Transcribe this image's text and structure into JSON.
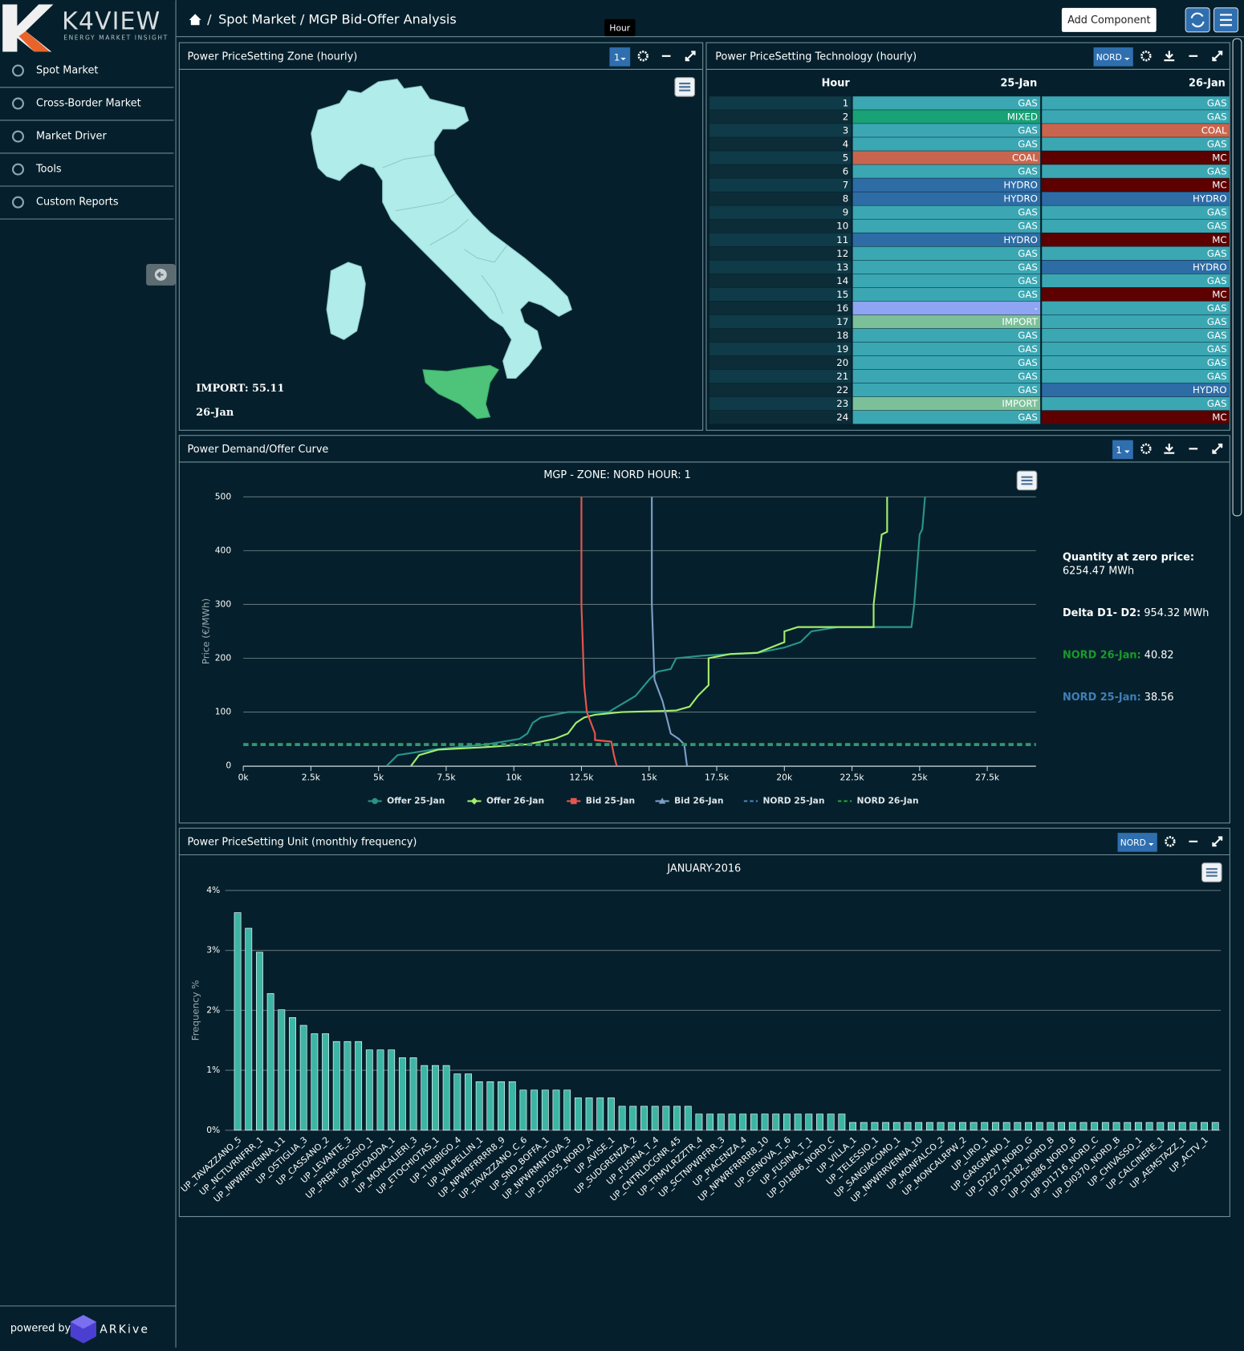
{
  "sidebar": {
    "logo": "K4VIEW",
    "tagline": "ENERGY MARKET INSIGHT",
    "menu": [
      "Spot Market",
      "Cross-Border Market",
      "Market Driver",
      "Tools",
      "Custom Reports"
    ],
    "powered_by": "powered by",
    "brand": "ARKive"
  },
  "header": {
    "breadcrumb": "Spot Market / MGP Bid-Offer Analysis",
    "button": "Add Component",
    "tooltip": "Hour"
  },
  "map_panel": {
    "title": "Power PriceSetting Zone (hourly)",
    "selector": "1",
    "label": "IMPORT: 55.11",
    "date": "26-Jan"
  },
  "table_panel": {
    "title": "Power PriceSetting Technology (hourly)",
    "selector": "NORD",
    "columns": [
      "Hour",
      "25-Jan",
      "26-Jan"
    ],
    "colors": {
      "GAS": "#3ba7b3",
      "MIXED": "#18a276",
      "COAL": "#c9654e",
      "MC": "#5c0000",
      "HYDRO": "#2e6ca6",
      "IMPORT": "#7cc09a",
      "-": "#8fa4f2"
    },
    "rows": [
      [
        1,
        "GAS",
        "GAS"
      ],
      [
        2,
        "MIXED",
        "GAS"
      ],
      [
        3,
        "GAS",
        "COAL"
      ],
      [
        4,
        "GAS",
        "GAS"
      ],
      [
        5,
        "COAL",
        "MC"
      ],
      [
        6,
        "GAS",
        "GAS"
      ],
      [
        7,
        "HYDRO",
        "MC"
      ],
      [
        8,
        "HYDRO",
        "HYDRO"
      ],
      [
        9,
        "GAS",
        "GAS"
      ],
      [
        10,
        "GAS",
        "GAS"
      ],
      [
        11,
        "HYDRO",
        "MC"
      ],
      [
        12,
        "GAS",
        "GAS"
      ],
      [
        13,
        "GAS",
        "HYDRO"
      ],
      [
        14,
        "GAS",
        "GAS"
      ],
      [
        15,
        "GAS",
        "MC"
      ],
      [
        16,
        "-",
        "GAS"
      ],
      [
        17,
        "IMPORT",
        "GAS"
      ],
      [
        18,
        "GAS",
        "GAS"
      ],
      [
        19,
        "GAS",
        "GAS"
      ],
      [
        20,
        "GAS",
        "GAS"
      ],
      [
        21,
        "GAS",
        "GAS"
      ],
      [
        22,
        "GAS",
        "HYDRO"
      ],
      [
        23,
        "IMPORT",
        "GAS"
      ],
      [
        24,
        "GAS",
        "MC"
      ]
    ]
  },
  "curve_panel": {
    "title": "Power Demand/Offer Curve",
    "selector": "1",
    "stats": [
      {
        "label": "Quantity at zero price:",
        "value": "6254.47 MWh",
        "color": "#ffffff"
      },
      {
        "label": "Delta D1- D2:",
        "value": "954.32 MWh",
        "color": "#ffffff"
      },
      {
        "label": "NORD 26-Jan:",
        "value": "40.82",
        "color": "#1a9a2a"
      },
      {
        "label": "NORD 25-Jan:",
        "value": "38.56",
        "color": "#3f7fb8"
      }
    ]
  },
  "bar_panel": {
    "title": "Power PriceSetting Unit (monthly frequency)",
    "selector": "NORD"
  },
  "chart_data": [
    {
      "type": "line",
      "title": "MGP - ZONE: NORD HOUR: 1",
      "y_label": "Price (€/MWh)",
      "xlim": [
        0,
        29300
      ],
      "ylim": [
        0,
        500
      ],
      "xticks": [
        {
          "value": 0,
          "label": "0k"
        },
        {
          "value": 2500,
          "label": "2.5k"
        },
        {
          "value": 5000,
          "label": "5k"
        },
        {
          "value": 7500,
          "label": "7.5k"
        },
        {
          "value": 10000,
          "label": "10k"
        },
        {
          "value": 12500,
          "label": "12.5k"
        },
        {
          "value": 15000,
          "label": "15k"
        },
        {
          "value": 17500,
          "label": "17.5k"
        },
        {
          "value": 20000,
          "label": "20k"
        },
        {
          "value": 22500,
          "label": "22.5k"
        },
        {
          "value": 25000,
          "label": "25k"
        },
        {
          "value": 27500,
          "label": "27.5k"
        }
      ],
      "yticks": [
        0,
        100,
        200,
        300,
        400,
        500
      ],
      "grid": true,
      "legend": "bottom",
      "series": [
        {
          "name": "Offer 25-Jan",
          "color": "#2a9488",
          "marker": "circle",
          "dash": false,
          "x": [
            5300,
            5700,
            7000,
            9000,
            10200,
            10500,
            10700,
            11000,
            12000,
            13500,
            14500,
            15000,
            15300,
            15800,
            16000,
            17000,
            19000,
            20000,
            20600,
            21000,
            22000,
            24700,
            24800,
            25000,
            25100,
            25200
          ],
          "values": [
            0,
            20,
            30,
            40,
            50,
            60,
            80,
            90,
            100,
            100,
            130,
            160,
            175,
            180,
            200,
            205,
            210,
            220,
            230,
            250,
            258,
            258,
            300,
            430,
            440,
            500
          ]
        },
        {
          "name": "Offer 26-Jan",
          "color": "#a4ec6e",
          "marker": "diamond",
          "dash": false,
          "x": [
            6200,
            6500,
            7200,
            9000,
            10500,
            11500,
            12000,
            12300,
            12600,
            13000,
            14000,
            15500,
            16000,
            16500,
            16800,
            17200,
            17200,
            18000,
            19000,
            20000,
            20000,
            20500,
            23300,
            23300,
            23600,
            23800,
            23800
          ],
          "values": [
            0,
            20,
            30,
            35,
            40,
            50,
            60,
            80,
            90,
            95,
            100,
            102,
            103,
            110,
            130,
            150,
            200,
            208,
            210,
            230,
            250,
            258,
            258,
            300,
            430,
            435,
            500
          ]
        },
        {
          "name": "Bid 25-Jan",
          "color": "#e8554e",
          "marker": "square",
          "dash": false,
          "x": [
            12500,
            12500,
            12600,
            12700,
            13000,
            13000,
            13600,
            13700,
            13800
          ],
          "values": [
            500,
            300,
            150,
            100,
            60,
            48,
            45,
            20,
            0
          ]
        },
        {
          "name": "Bid 26-Jan",
          "color": "#7d9ec6",
          "marker": "triangle",
          "dash": false,
          "x": [
            15100,
            15100,
            15200,
            15500,
            15600,
            15800,
            16100,
            16300,
            16400
          ],
          "values": [
            500,
            300,
            160,
            120,
            100,
            60,
            50,
            40,
            0
          ]
        },
        {
          "name": "NORD 25-Jan",
          "color": "#4a86c0",
          "marker": "none",
          "dash": true,
          "x": [
            0,
            29300
          ],
          "values": [
            38.56,
            38.56
          ]
        },
        {
          "name": "NORD 26-Jan",
          "color": "#27a33a",
          "marker": "none",
          "dash": true,
          "x": [
            0,
            29300
          ],
          "values": [
            40.82,
            40.82
          ]
        }
      ]
    },
    {
      "type": "bar",
      "title": "JANUARY-2016",
      "y_label": "Frequency %",
      "color": "#3db5a5",
      "ylim": [
        0,
        4
      ],
      "yticks": [
        {
          "value": 0,
          "label": "0%"
        },
        {
          "value": 1,
          "label": "1%"
        },
        {
          "value": 2,
          "label": "2%"
        },
        {
          "value": 3,
          "label": "3%"
        },
        {
          "value": 4,
          "label": "4%"
        }
      ],
      "grid": true,
      "categories": [
        "UP_TAVAZZANO_5",
        null,
        "UP_NCTLVRNFRR_1",
        null,
        "UP_NPWRRVENNA_11",
        null,
        "UP_OSTIGLIA_3",
        null,
        "UP_CASSANO_2",
        null,
        "UP_LEVANTE_3",
        null,
        "UP_PREM-GROSIO_1",
        null,
        "UP_ALTOADDA_1",
        null,
        "UP_MONCALIERI_3",
        null,
        "UP_ETOCHIOTAS_1",
        null,
        "UP_TURBIGO_4",
        null,
        "UP_VALPELLIN_1",
        null,
        "UP_NPWRFRRRR8_9",
        null,
        "UP_TAVAZZANO_C_6",
        null,
        "UP_SND_BOFFA_1",
        null,
        "UP_NPWRMNTOVA_3",
        null,
        "UP_DI2055_NORD_A",
        null,
        "UP_AVISE_1",
        null,
        "UP_SUDGRENZA_2",
        null,
        "UP_FUSINA_T_4",
        null,
        "UP_CNTRLDCGNR_45",
        null,
        "UP_TRMVLRZZTR_4",
        null,
        "UP_SCTNPWRFRR_3",
        null,
        "UP_PIACENZA_4",
        null,
        "UP_NPWRFRRRR8_10",
        null,
        "UP_GENOVA_T_6",
        null,
        "UP_FUSINA_T_1",
        null,
        "UP_DI1886_NORD_C",
        null,
        "UP_VILLA_1",
        null,
        "UP_TELESSIO_1",
        null,
        "UP_SANGIACOMO_1",
        null,
        "UP_NPWRRVENNA_10",
        null,
        "UP_MONFALCO_2",
        null,
        "UP_MONCALRPW_2",
        null,
        "UP_LIRO_1",
        null,
        "UP_GARGNANO_1",
        null,
        "UP_D2227_NORD_G",
        null,
        "UP_D2182_NORD_B",
        null,
        "UP_DI1886_NORD_B",
        null,
        "UP_DI1716_NORD_C",
        null,
        "UP_DI0370_NORD_B",
        null,
        "UP_CHIVASSO_1",
        null,
        "UP_CALCINERE_1",
        null,
        "UP_AEMSTAZZ_1",
        null,
        "UP_ACTV_1",
        null
      ],
      "values": [
        3.63,
        3.37,
        2.97,
        2.28,
        2.01,
        1.88,
        1.75,
        1.61,
        1.61,
        1.48,
        1.48,
        1.48,
        1.34,
        1.34,
        1.34,
        1.21,
        1.21,
        1.08,
        1.08,
        1.08,
        0.94,
        0.94,
        0.81,
        0.81,
        0.81,
        0.81,
        0.67,
        0.67,
        0.67,
        0.67,
        0.67,
        0.54,
        0.54,
        0.54,
        0.54,
        0.4,
        0.4,
        0.4,
        0.4,
        0.4,
        0.4,
        0.4,
        0.27,
        0.27,
        0.27,
        0.27,
        0.27,
        0.27,
        0.27,
        0.27,
        0.27,
        0.27,
        0.27,
        0.27,
        0.27,
        0.27,
        0.13,
        0.13,
        0.13,
        0.13,
        0.13,
        0.13,
        0.13,
        0.13,
        0.13,
        0.13,
        0.13,
        0.13,
        0.13,
        0.13,
        0.13,
        0.13,
        0.13,
        0.13,
        0.13,
        0.13,
        0.13,
        0.13,
        0.13,
        0.13,
        0.13,
        0.13,
        0.13,
        0.13,
        0.13,
        0.13,
        0.13,
        0.13,
        0.13,
        0.13
      ]
    }
  ]
}
